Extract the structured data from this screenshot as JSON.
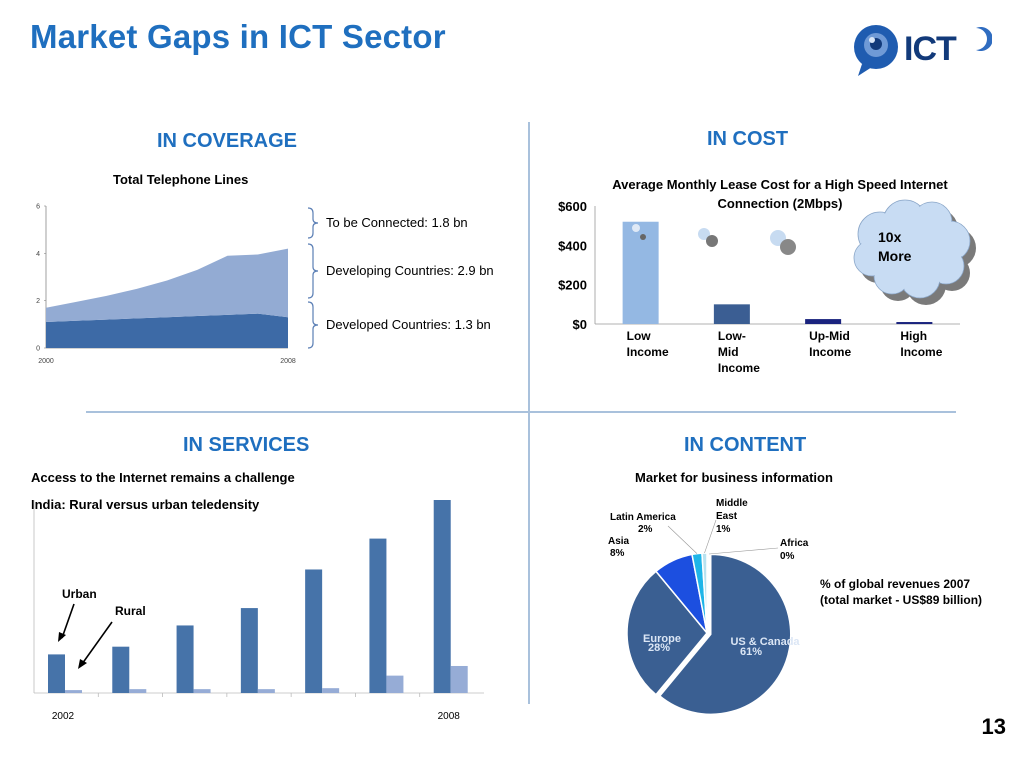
{
  "title": "Market Gaps in ICT Sector",
  "logo": {
    "text": "ICT"
  },
  "page_number": "13",
  "coverage": {
    "heading": "IN COVERAGE",
    "annotations": [
      {
        "text": "To be Connected: 1.8 bn"
      },
      {
        "text": "Developing Countries: 2.9 bn"
      },
      {
        "text": "Developed Countries: 1.3 bn"
      }
    ]
  },
  "cost": {
    "heading": "IN COST",
    "cloud": {
      "line1": "10x",
      "line2": "More"
    }
  },
  "services": {
    "heading": "IN SERVICES",
    "line1": "Access to the Internet remains a challenge",
    "line2": "India: Rural versus urban teledensity",
    "urban_label": "Urban",
    "rural_label": "Rural"
  },
  "content": {
    "heading": "IN CONTENT",
    "note_line1": "% of global revenues 2007",
    "note_line2": "(total market - US$89 billion)"
  },
  "chart_data": [
    {
      "type": "area",
      "title": "Total Telephone Lines",
      "x": [
        2000,
        2001,
        2002,
        2003,
        2004,
        2005,
        2006,
        2007,
        2008
      ],
      "x_tick_labels": [
        "2000",
        "2008"
      ],
      "ylim": [
        0,
        6
      ],
      "y_ticks": [
        0,
        2,
        4,
        6
      ],
      "series": [
        {
          "values": [
            1.1,
            1.15,
            1.2,
            1.25,
            1.3,
            1.35,
            1.4,
            1.45,
            1.3
          ],
          "color": "#3d6aa6"
        },
        {
          "values": [
            0.6,
            0.8,
            1.0,
            1.25,
            1.55,
            1.95,
            2.5,
            2.5,
            2.9
          ],
          "color": "#93abd3"
        }
      ],
      "grid": false
    },
    {
      "type": "bar",
      "title": "Average Monthly Lease Cost for a High Speed Internet Connection (2Mbps)",
      "categories": [
        [
          "Low",
          " Income"
        ],
        [
          "Low-",
          "Mid",
          "Income"
        ],
        [
          "Up-Mid",
          "Income"
        ],
        [
          "High",
          "Income"
        ]
      ],
      "values": [
        520,
        100,
        25,
        10
      ],
      "colors": [
        "#94b8e3",
        "#3b5e93",
        "#1a237e",
        "#1a237e"
      ],
      "y_tick_labels": [
        "$0",
        "$200",
        "$400",
        "$600"
      ],
      "y_ticks": [
        0,
        200,
        400,
        600
      ],
      "ylim": [
        0,
        600
      ],
      "grid": false
    },
    {
      "type": "bar",
      "title": "India: Rural versus urban teledensity",
      "categories": [
        "2002",
        "",
        "",
        "",
        "",
        "",
        "2008"
      ],
      "series": [
        {
          "name": "Urban",
          "values": [
            20,
            24,
            35,
            44,
            64,
            80,
            100
          ],
          "color": "#4673a9"
        },
        {
          "name": "Rural",
          "values": [
            1.5,
            2,
            2,
            2,
            2.5,
            9,
            14
          ],
          "color": "#96acd6"
        }
      ],
      "ylim": [
        0,
        100
      ],
      "grid": false
    },
    {
      "type": "pie",
      "title": "Market for business information",
      "slices": [
        {
          "label": "US & Canada",
          "value": 61,
          "pct": "61%",
          "color": "#3a5f92"
        },
        {
          "label": "Europe",
          "value": 28,
          "pct": "28%",
          "color": "#3a5f92"
        },
        {
          "label": "Asia",
          "value": 8,
          "pct": "8%",
          "color": "#1c4fe0"
        },
        {
          "label": "Latin America",
          "value": 2,
          "pct": "2%",
          "color": "#1fb5e8"
        },
        {
          "label": "Middle East",
          "value": 1,
          "pct": "1%",
          "color": "#b8e2f0"
        },
        {
          "label": "Africa",
          "value": 0,
          "pct": "0%",
          "color": "#ffffff"
        }
      ]
    }
  ]
}
